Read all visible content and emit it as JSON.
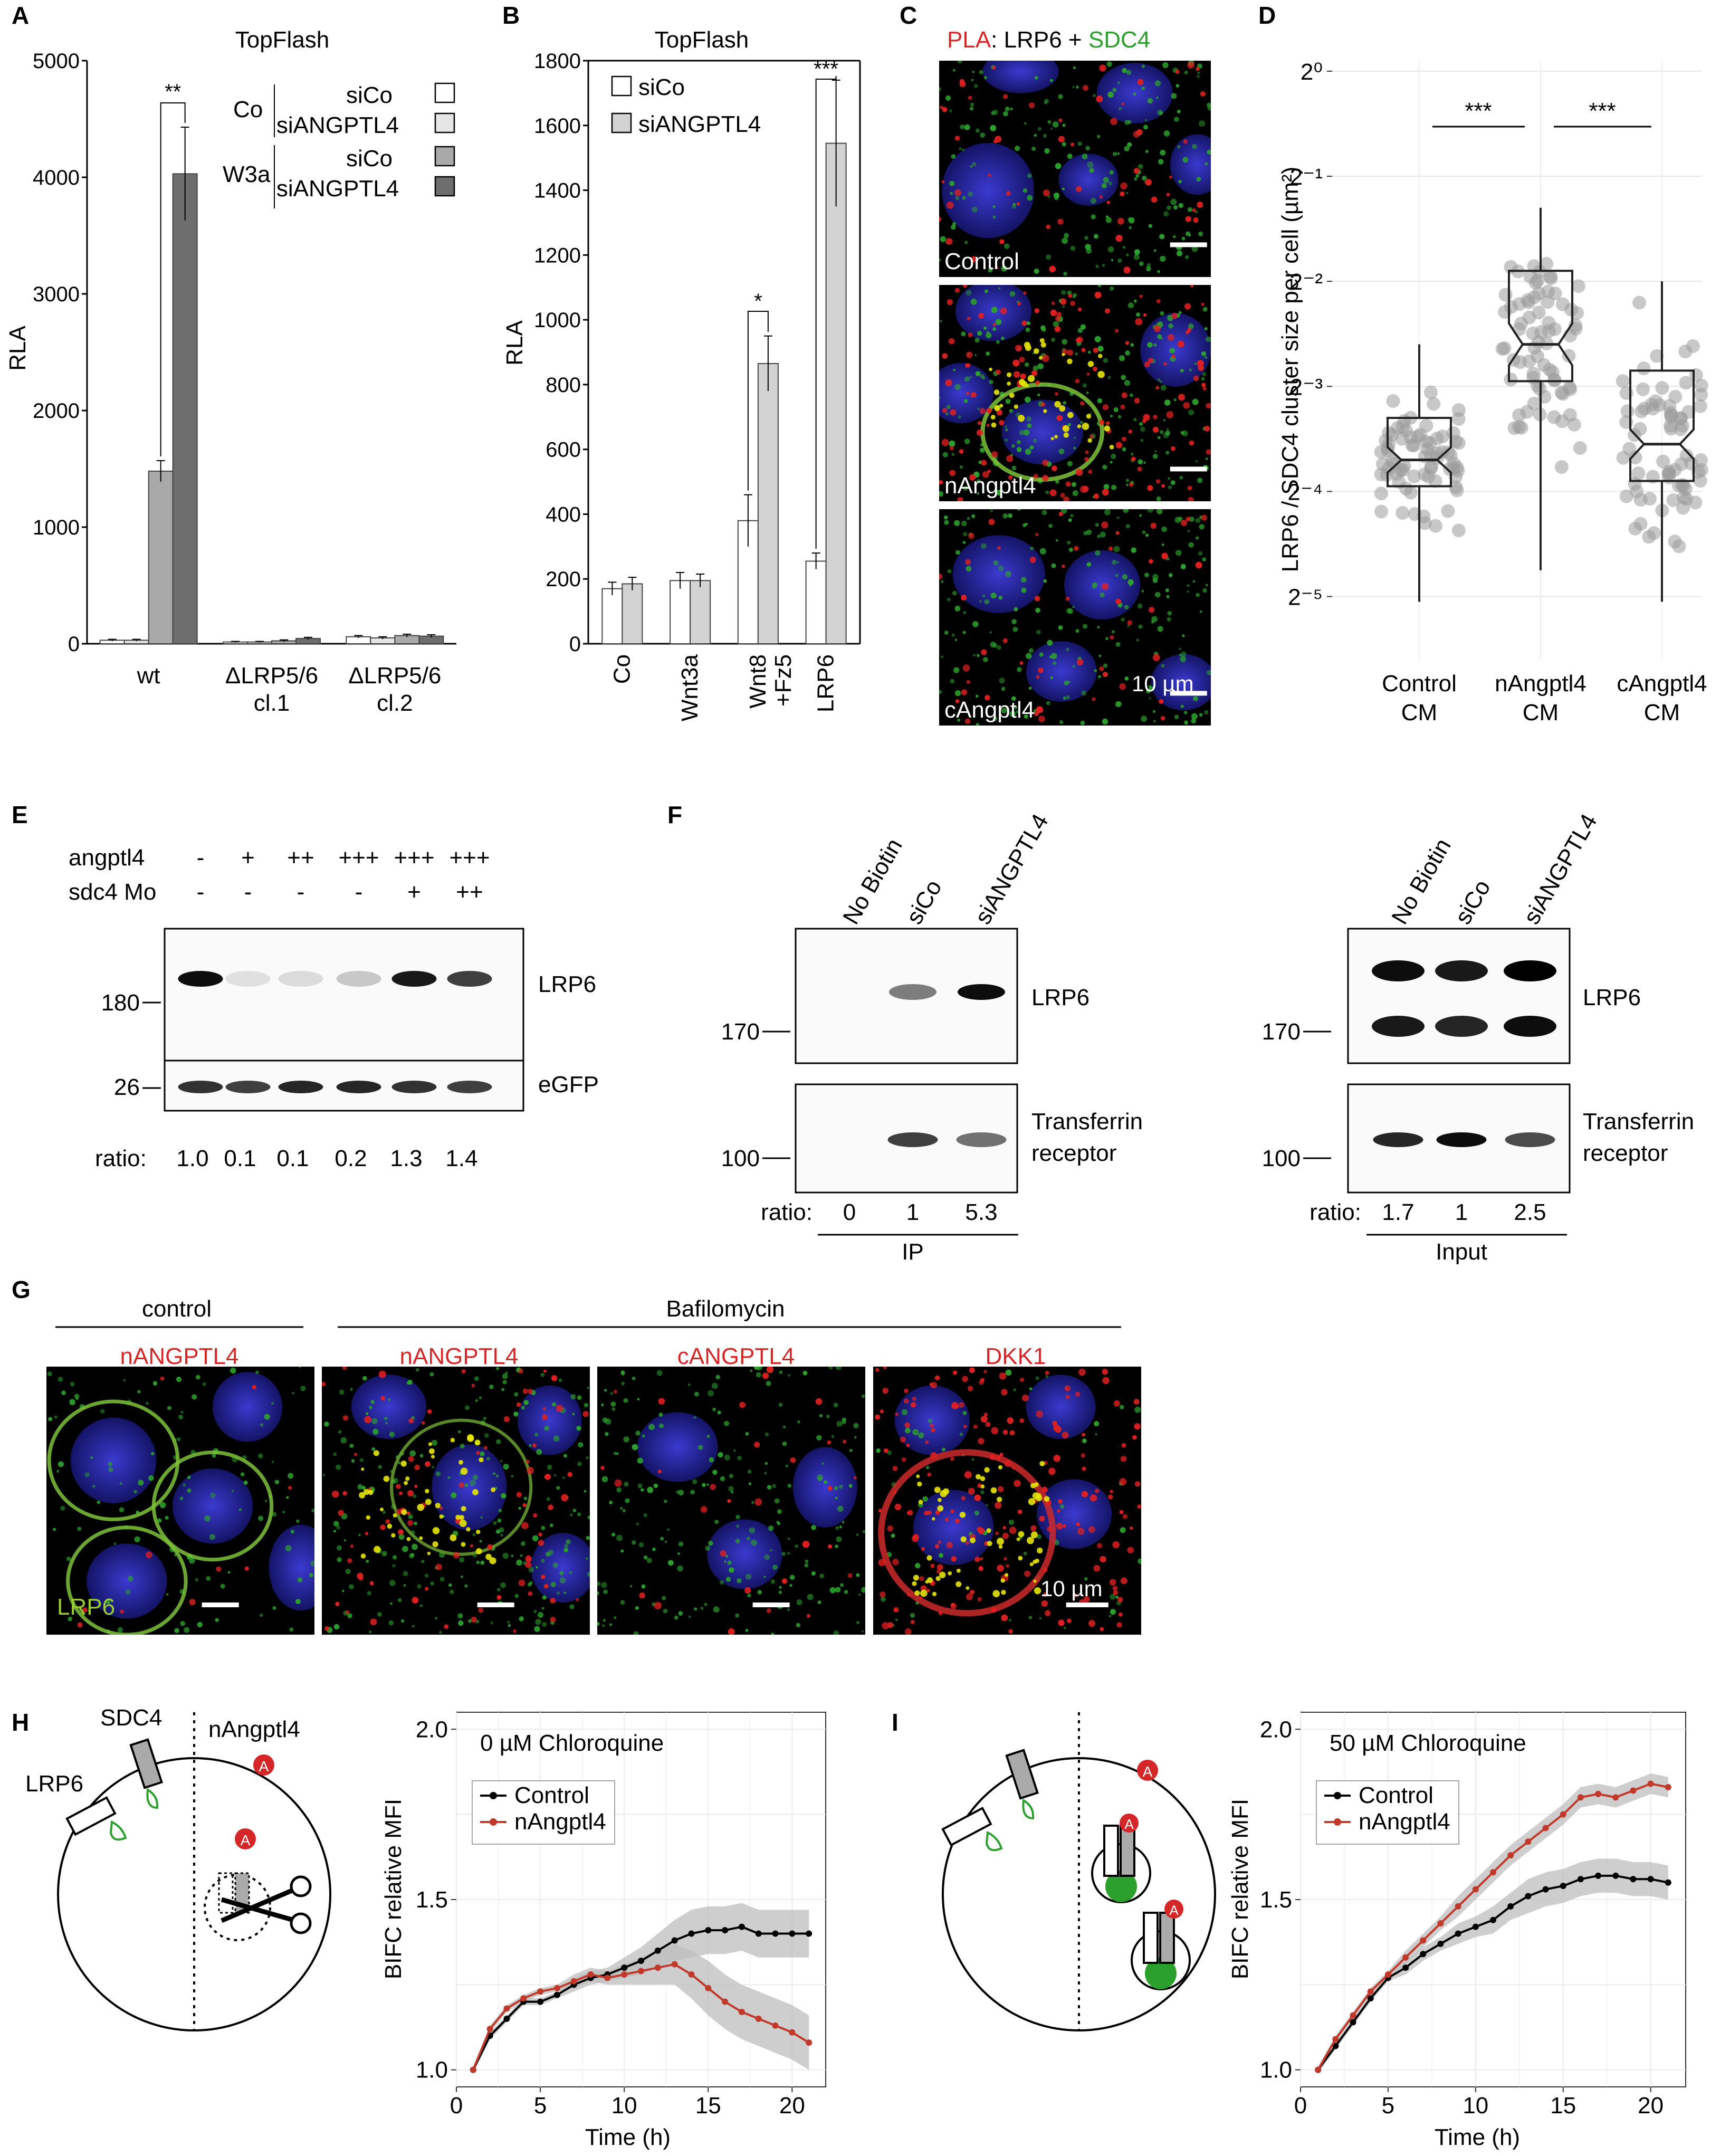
{
  "panels": {
    "A": "A",
    "B": "B",
    "C": "C",
    "D": "D",
    "E": "E",
    "F": "F",
    "G": "G",
    "H": "H",
    "I": "I"
  },
  "colors": {
    "red": "#d62728",
    "green": "#2ca02c",
    "lime": "#9acd32",
    "blue": "#2a2aa8",
    "yellow": "#e6e600",
    "gray_ribbon": "#c8c8c8",
    "dark_red": "#c0392b"
  },
  "chart_data": [
    {
      "panel": "A",
      "type": "bar",
      "title": "TopFlash",
      "ylabel": "RLA",
      "ylim": [
        0,
        5000
      ],
      "yticks": [
        0,
        1000,
        2000,
        3000,
        4000,
        5000
      ],
      "categories": [
        "wt",
        "ΔLRP5/6\ncl.1",
        "ΔLRP5/6\ncl.2"
      ],
      "category_lines": [
        [
          "wt"
        ],
        [
          "ΔLRP5/6",
          "cl.1"
        ],
        [
          "ΔLRP5/6",
          "cl.2"
        ]
      ],
      "legend_groups": [
        {
          "label": "Co",
          "items": [
            "siCo",
            "siANGPTL4"
          ]
        },
        {
          "label": "W3a",
          "items": [
            "siCo",
            "siANGPTL4"
          ]
        }
      ],
      "series": [
        {
          "name": "Co siCo",
          "color": "#ffffff",
          "values": [
            30,
            15,
            60
          ],
          "err": [
            8,
            5,
            10
          ]
        },
        {
          "name": "Co siANGPTL4",
          "color": "#e6e6e6",
          "values": [
            30,
            15,
            50
          ],
          "err": [
            8,
            5,
            10
          ]
        },
        {
          "name": "W3a siCo",
          "color": "#a9a9a9",
          "values": [
            1480,
            25,
            70
          ],
          "err": [
            90,
            8,
            12
          ]
        },
        {
          "name": "W3a siANGPTL4",
          "color": "#6e6e6e",
          "values": [
            4030,
            45,
            65
          ],
          "err": [
            400,
            10,
            12
          ]
        }
      ],
      "annotations": [
        {
          "text": "**",
          "between": [
            "wt W3a siCo",
            "wt W3a siANGPTL4"
          ]
        }
      ]
    },
    {
      "panel": "B",
      "type": "bar",
      "title": "TopFlash",
      "ylabel": "RLA",
      "ylim": [
        0,
        1800
      ],
      "yticks": [
        0,
        200,
        400,
        600,
        800,
        1000,
        1200,
        1400,
        1600,
        1800
      ],
      "categories": [
        "Co",
        "Wnt3a",
        "Wnt8\n+Fz5",
        "LRP6"
      ],
      "category_lines": [
        [
          "Co"
        ],
        [
          "Wnt3a"
        ],
        [
          "Wnt8",
          "+Fz5"
        ],
        [
          "LRP6"
        ]
      ],
      "series": [
        {
          "name": "siCo",
          "color": "#ffffff",
          "values": [
            170,
            195,
            380,
            255
          ],
          "err": [
            20,
            25,
            80,
            25
          ]
        },
        {
          "name": "siANGPTL4",
          "color": "#d3d3d3",
          "values": [
            185,
            195,
            865,
            1545
          ],
          "err": [
            20,
            20,
            85,
            195
          ]
        }
      ],
      "annotations": [
        {
          "text": "*",
          "category": "Wnt8\n+Fz5"
        },
        {
          "text": "***",
          "category": "LRP6"
        }
      ]
    },
    {
      "panel": "D",
      "type": "box",
      "ylabel": "LRP6 / SDC4 cluster size per cell (µm²)",
      "yscale": "log2",
      "ylim_log2": [
        -5.6,
        0.1
      ],
      "ytick_labels": [
        "2⁰",
        "2⁻¹",
        "2⁻²",
        "2⁻³",
        "2⁻⁴",
        "2⁻⁵"
      ],
      "categories": [
        "Control\nCM",
        "nAngptl4\nCM",
        "cAngptl4\nCM"
      ],
      "category_lines": [
        [
          "Control",
          "CM"
        ],
        [
          "nAngptl4",
          "CM"
        ],
        [
          "cAngptl4",
          "CM"
        ]
      ],
      "boxes": [
        {
          "name": "Control CM",
          "median": -3.7,
          "q1": -3.95,
          "q3": -3.3,
          "lower": -5.05,
          "upper": -2.6,
          "notch": 0.12
        },
        {
          "name": "nAngptl4 CM",
          "median": -2.6,
          "q1": -2.95,
          "q3": -1.9,
          "lower": -4.75,
          "upper": -1.3,
          "notch": 0.2
        },
        {
          "name": "cAngptl4 CM",
          "median": -3.55,
          "q1": -3.9,
          "q3": -2.85,
          "lower": -5.05,
          "upper": -2.0,
          "notch": 0.14
        }
      ],
      "annotations": [
        {
          "text": "***",
          "between": [
            "Control CM",
            "nAngptl4 CM"
          ]
        },
        {
          "text": "***",
          "between": [
            "nAngptl4 CM",
            "cAngptl4 CM"
          ]
        }
      ]
    },
    {
      "panel": "H",
      "type": "line",
      "title": "0 µM Chloroquine",
      "xlabel": "Time (h)",
      "ylabel": "BIFC relative MFI",
      "xlim": [
        0,
        22
      ],
      "ylim": [
        0.95,
        2.05
      ],
      "xticks": [
        0,
        5,
        10,
        15,
        20
      ],
      "yticks": [
        1.0,
        1.5,
        2.0
      ],
      "ytick_labels": [
        "1.0",
        "1.5",
        "2.0"
      ],
      "legend": "top-left",
      "series": [
        {
          "name": "Control",
          "color": "#000000",
          "x": [
            1,
            2,
            3,
            4,
            5,
            6,
            7,
            8,
            9,
            10,
            11,
            12,
            13,
            14,
            15,
            16,
            17,
            18,
            19,
            20,
            21
          ],
          "y": [
            1.0,
            1.1,
            1.15,
            1.2,
            1.2,
            1.22,
            1.25,
            1.27,
            1.28,
            1.3,
            1.32,
            1.35,
            1.38,
            1.4,
            1.41,
            1.41,
            1.42,
            1.4,
            1.4,
            1.4,
            1.4
          ],
          "band": [
            0.01,
            0.01,
            0.01,
            0.01,
            0.01,
            0.01,
            0.02,
            0.02,
            0.02,
            0.03,
            0.04,
            0.05,
            0.06,
            0.07,
            0.07,
            0.07,
            0.07,
            0.07,
            0.07,
            0.07,
            0.07
          ]
        },
        {
          "name": "nAngptl4",
          "color": "#c0392b",
          "x": [
            1,
            2,
            3,
            4,
            5,
            6,
            7,
            8,
            9,
            10,
            11,
            12,
            13,
            14,
            15,
            16,
            17,
            18,
            19,
            20,
            21
          ],
          "y": [
            1.0,
            1.12,
            1.18,
            1.21,
            1.23,
            1.24,
            1.26,
            1.28,
            1.27,
            1.28,
            1.29,
            1.3,
            1.31,
            1.28,
            1.24,
            1.2,
            1.17,
            1.15,
            1.13,
            1.11,
            1.08
          ],
          "band": [
            0.01,
            0.01,
            0.01,
            0.01,
            0.01,
            0.01,
            0.02,
            0.02,
            0.02,
            0.03,
            0.04,
            0.05,
            0.06,
            0.07,
            0.08,
            0.08,
            0.08,
            0.08,
            0.08,
            0.08,
            0.08
          ]
        }
      ]
    },
    {
      "panel": "I",
      "type": "line",
      "title": "50 µM Chloroquine",
      "xlabel": "Time (h)",
      "ylabel": "BIFC relative MFI",
      "xlim": [
        0,
        22
      ],
      "ylim": [
        0.95,
        2.05
      ],
      "xticks": [
        0,
        5,
        10,
        15,
        20
      ],
      "yticks": [
        1.0,
        1.5,
        2.0
      ],
      "ytick_labels": [
        "1.0",
        "1.5",
        "2.0"
      ],
      "legend": "top-left",
      "series": [
        {
          "name": "Control",
          "color": "#000000",
          "x": [
            1,
            2,
            3,
            4,
            5,
            6,
            7,
            8,
            9,
            10,
            11,
            12,
            13,
            14,
            15,
            16,
            17,
            18,
            19,
            20,
            21
          ],
          "y": [
            1.0,
            1.07,
            1.14,
            1.21,
            1.27,
            1.3,
            1.34,
            1.37,
            1.4,
            1.42,
            1.44,
            1.48,
            1.51,
            1.53,
            1.54,
            1.56,
            1.57,
            1.57,
            1.56,
            1.56,
            1.55
          ],
          "band": [
            0.01,
            0.01,
            0.01,
            0.01,
            0.01,
            0.02,
            0.02,
            0.02,
            0.03,
            0.03,
            0.04,
            0.04,
            0.05,
            0.05,
            0.05,
            0.05,
            0.05,
            0.05,
            0.05,
            0.05,
            0.05
          ]
        },
        {
          "name": "nAngptl4",
          "color": "#c0392b",
          "x": [
            1,
            2,
            3,
            4,
            5,
            6,
            7,
            8,
            9,
            10,
            11,
            12,
            13,
            14,
            15,
            16,
            17,
            18,
            19,
            20,
            21
          ],
          "y": [
            1.0,
            1.09,
            1.16,
            1.23,
            1.28,
            1.33,
            1.38,
            1.43,
            1.48,
            1.53,
            1.58,
            1.63,
            1.67,
            1.71,
            1.75,
            1.8,
            1.81,
            1.8,
            1.82,
            1.84,
            1.83
          ],
          "band": [
            0.01,
            0.01,
            0.01,
            0.01,
            0.01,
            0.02,
            0.02,
            0.02,
            0.03,
            0.03,
            0.03,
            0.03,
            0.03,
            0.03,
            0.03,
            0.03,
            0.03,
            0.03,
            0.03,
            0.03,
            0.03
          ]
        }
      ]
    }
  ],
  "panelC": {
    "header": {
      "pla": "PLA",
      "mid": ": LRP6 + ",
      "sdc4": "SDC4"
    },
    "labels": [
      "Control",
      "nAngptl4",
      "cAngptl4"
    ],
    "scale": "10 µm"
  },
  "panelE": {
    "rows": [
      {
        "label": "angptl4",
        "values": [
          "-",
          "+",
          "++",
          "+++",
          "+++",
          "+++"
        ]
      },
      {
        "label": "sdc4 Mo",
        "values": [
          "-",
          "-",
          "-",
          "-",
          "+",
          "++"
        ]
      }
    ],
    "blots": [
      {
        "label": "LRP6",
        "marker": "180",
        "bands": [
          0.95,
          0.1,
          0.12,
          0.2,
          0.9,
          0.75
        ]
      },
      {
        "label": "eGFP",
        "marker": "26",
        "bands": [
          0.8,
          0.75,
          0.85,
          0.85,
          0.8,
          0.75
        ]
      }
    ],
    "ratio_label": "ratio:",
    "ratios": [
      "1.0",
      "0.1",
      "0.1",
      "0.2",
      "1.3",
      "1.4"
    ]
  },
  "panelF": {
    "left": {
      "lanes": [
        "No Biotin",
        "siCo",
        "siANGPTL4"
      ],
      "blots": [
        {
          "label": "LRP6",
          "marker": "170"
        },
        {
          "label": "Transferrin",
          "label2": "receptor",
          "marker": "100"
        }
      ],
      "ratio_label": "ratio:",
      "ratios": [
        "0",
        "1",
        "5.3"
      ],
      "group": "IP"
    },
    "right": {
      "lanes": [
        "No Biotin",
        "siCo",
        "siANGPTL4"
      ],
      "blots": [
        {
          "label": "LRP6",
          "marker": "170"
        },
        {
          "label": "Transferrin",
          "label2": "receptor",
          "marker": "100"
        }
      ],
      "ratio_label": "ratio:",
      "ratios": [
        "1.7",
        "1",
        "2.5"
      ],
      "group": "Input"
    }
  },
  "panelG": {
    "groups": [
      "control",
      "Bafilomycin"
    ],
    "images": [
      {
        "label": "nANGPTL4"
      },
      {
        "label": "nANGPTL4"
      },
      {
        "label": "cANGPTL4"
      },
      {
        "label": "DKK1"
      }
    ],
    "channel": "LRP6",
    "scale": "10 µm"
  },
  "panelH": {
    "labels": {
      "sdc4": "SDC4",
      "lrp6": "LRP6",
      "nangptl4": "nAngptl4",
      "a": "A"
    }
  },
  "panelI": {
    "labels": {
      "a": "A"
    }
  }
}
